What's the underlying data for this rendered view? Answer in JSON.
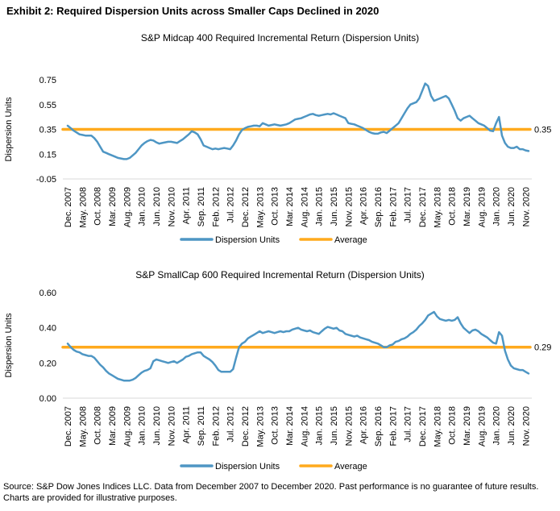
{
  "page": {
    "exhibit_title": "Exhibit 2: Required Dispersion Units across Smaller Caps Declined in 2020",
    "source_note": "Source: S&P Dow Jones Indices LLC. Data from December 2007 to December 2020. Past performance is no guarantee of future results. Charts are provided for illustrative purposes."
  },
  "colors": {
    "series": "#4E96C4",
    "average": "#FFAA1D",
    "axis_line": "#D9D9D9",
    "text": "#000000"
  },
  "legend": {
    "series_label": "Dispersion Units",
    "average_label": "Average"
  },
  "x_tick_labels": [
    "Dec. 2007",
    "May. 2008",
    "Oct. 2008",
    "Mar. 2009",
    "Aug. 2009",
    "Jan. 2010",
    "Jun. 2010",
    "Nov. 2010",
    "Apr. 2011",
    "Sep. 2011",
    "Feb. 2012",
    "Jul. 2012",
    "Dec. 2012",
    "May. 2013",
    "Oct. 2013",
    "Mar. 2014",
    "Aug. 2014",
    "Jan. 2015",
    "Jun. 2015",
    "Nov. 2015",
    "Apr. 2016",
    "Sep. 2016",
    "Feb. 2017",
    "Jul. 2017",
    "Dec. 2017",
    "May. 2018",
    "Oct. 2018",
    "Mar. 2019",
    "Aug. 2019",
    "Jan. 2020",
    "Jun. 2020",
    "Nov. 2020"
  ],
  "chart_data": [
    {
      "type": "line",
      "title": "S&P Midcap 400 Required Incremental Return (Dispersion Units)",
      "ylabel": "Dispersion Units",
      "x_start": "Dec. 2007",
      "x_end": "Dec. 2020",
      "x_frequency": "monthly",
      "y_tick_labels": [
        "-0.05",
        "0.15",
        "0.35",
        "0.55",
        "0.75"
      ],
      "ylim": [
        -0.05,
        0.75
      ],
      "grid": false,
      "legend_position": "bottom",
      "average": 0.35,
      "average_label": "0.35",
      "series": [
        {
          "name": "Dispersion Units",
          "values": [
            0.38,
            0.36,
            0.34,
            0.325,
            0.31,
            0.305,
            0.3,
            0.3,
            0.3,
            0.28,
            0.25,
            0.21,
            0.17,
            0.16,
            0.15,
            0.14,
            0.13,
            0.12,
            0.115,
            0.11,
            0.11,
            0.12,
            0.14,
            0.16,
            0.19,
            0.22,
            0.24,
            0.255,
            0.265,
            0.26,
            0.245,
            0.235,
            0.24,
            0.245,
            0.25,
            0.25,
            0.245,
            0.24,
            0.255,
            0.27,
            0.29,
            0.31,
            0.335,
            0.325,
            0.31,
            0.27,
            0.22,
            0.21,
            0.2,
            0.19,
            0.195,
            0.19,
            0.195,
            0.2,
            0.195,
            0.19,
            0.22,
            0.26,
            0.31,
            0.345,
            0.36,
            0.37,
            0.375,
            0.38,
            0.38,
            0.375,
            0.4,
            0.39,
            0.38,
            0.385,
            0.39,
            0.385,
            0.38,
            0.385,
            0.39,
            0.4,
            0.415,
            0.43,
            0.435,
            0.44,
            0.45,
            0.46,
            0.47,
            0.475,
            0.465,
            0.46,
            0.465,
            0.47,
            0.475,
            0.47,
            0.48,
            0.47,
            0.46,
            0.45,
            0.44,
            0.4,
            0.395,
            0.39,
            0.38,
            0.37,
            0.36,
            0.345,
            0.33,
            0.32,
            0.315,
            0.315,
            0.325,
            0.33,
            0.32,
            0.34,
            0.36,
            0.38,
            0.4,
            0.44,
            0.48,
            0.52,
            0.55,
            0.56,
            0.57,
            0.6,
            0.66,
            0.72,
            0.7,
            0.62,
            0.58,
            0.59,
            0.6,
            0.61,
            0.62,
            0.6,
            0.55,
            0.5,
            0.44,
            0.42,
            0.44,
            0.45,
            0.46,
            0.44,
            0.42,
            0.4,
            0.39,
            0.38,
            0.36,
            0.34,
            0.335,
            0.4,
            0.45,
            0.3,
            0.24,
            0.21,
            0.2,
            0.2,
            0.21,
            0.19,
            0.19,
            0.18,
            0.175
          ]
        }
      ]
    },
    {
      "type": "line",
      "title": "S&P SmallCap 600 Required Incremental Return (Dispersion Units)",
      "ylabel": "Dispersion Units",
      "x_start": "Dec. 2007",
      "x_end": "Dec. 2020",
      "x_frequency": "monthly",
      "y_tick_labels": [
        "0.00",
        "0.20",
        "0.40",
        "0.60"
      ],
      "ylim": [
        0.0,
        0.6
      ],
      "grid": false,
      "legend_position": "bottom",
      "average": 0.29,
      "average_label": "0.29",
      "series": [
        {
          "name": "Dispersion Units",
          "values": [
            0.31,
            0.29,
            0.275,
            0.265,
            0.26,
            0.25,
            0.245,
            0.24,
            0.24,
            0.23,
            0.21,
            0.19,
            0.175,
            0.155,
            0.14,
            0.13,
            0.12,
            0.11,
            0.105,
            0.1,
            0.1,
            0.1,
            0.105,
            0.115,
            0.13,
            0.145,
            0.155,
            0.16,
            0.17,
            0.21,
            0.22,
            0.215,
            0.21,
            0.205,
            0.2,
            0.205,
            0.21,
            0.2,
            0.21,
            0.22,
            0.235,
            0.24,
            0.25,
            0.255,
            0.26,
            0.26,
            0.24,
            0.23,
            0.22,
            0.205,
            0.185,
            0.16,
            0.15,
            0.15,
            0.15,
            0.15,
            0.165,
            0.23,
            0.29,
            0.31,
            0.32,
            0.34,
            0.35,
            0.36,
            0.37,
            0.38,
            0.37,
            0.375,
            0.38,
            0.375,
            0.37,
            0.375,
            0.38,
            0.375,
            0.38,
            0.38,
            0.39,
            0.395,
            0.4,
            0.39,
            0.385,
            0.38,
            0.385,
            0.375,
            0.37,
            0.365,
            0.38,
            0.395,
            0.405,
            0.4,
            0.395,
            0.4,
            0.385,
            0.38,
            0.365,
            0.36,
            0.355,
            0.35,
            0.355,
            0.345,
            0.34,
            0.335,
            0.33,
            0.32,
            0.315,
            0.31,
            0.3,
            0.29,
            0.29,
            0.3,
            0.305,
            0.32,
            0.325,
            0.335,
            0.34,
            0.35,
            0.365,
            0.375,
            0.39,
            0.41,
            0.425,
            0.445,
            0.47,
            0.48,
            0.49,
            0.465,
            0.45,
            0.445,
            0.44,
            0.445,
            0.44,
            0.445,
            0.46,
            0.425,
            0.4,
            0.385,
            0.37,
            0.385,
            0.39,
            0.38,
            0.365,
            0.355,
            0.345,
            0.33,
            0.315,
            0.31,
            0.375,
            0.355,
            0.27,
            0.22,
            0.185,
            0.17,
            0.165,
            0.16,
            0.16,
            0.15,
            0.14
          ]
        }
      ]
    }
  ]
}
